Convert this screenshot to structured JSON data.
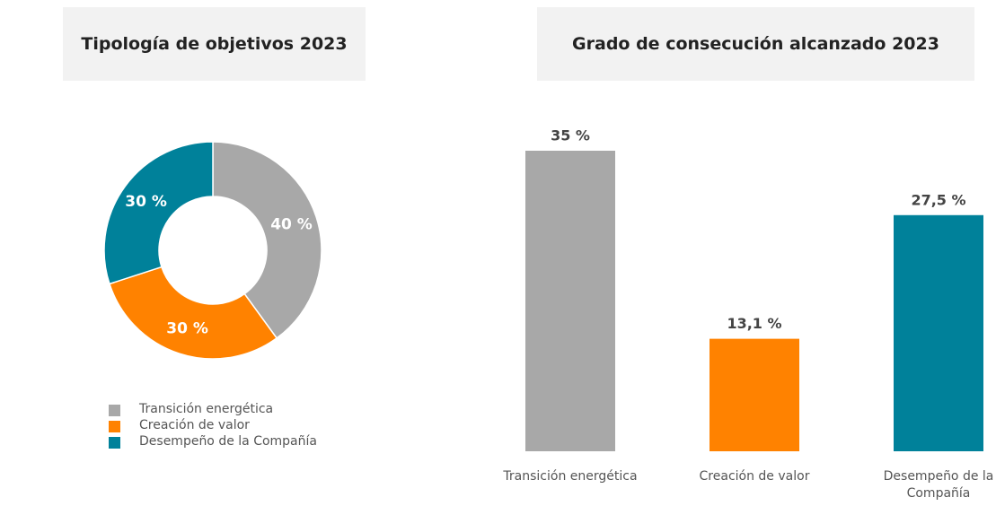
{
  "chart_data": [
    {
      "type": "pie",
      "title": "Tipología de objetivos 2023",
      "categories": [
        "Transición energética",
        "Creación de valor",
        "Desempeño de la Compañía"
      ],
      "values": [
        40,
        30,
        30
      ],
      "value_labels": [
        "40 %",
        "30 %",
        "30 %"
      ],
      "colors": [
        "#a8a8a8",
        "#ff8200",
        "#00819a"
      ],
      "donut": true,
      "legend": "bottom-left"
    },
    {
      "type": "bar",
      "title": "Grado de consecución alcanzado 2023",
      "categories": [
        "Transición energética",
        "Creación de valor",
        "Desempeño de la Compañía"
      ],
      "values": [
        35,
        13.1,
        27.5
      ],
      "value_labels": [
        "35 %",
        "13,1 %",
        "27,5 %"
      ],
      "colors": [
        "#a8a8a8",
        "#ff8200",
        "#00819a"
      ]
    }
  ]
}
